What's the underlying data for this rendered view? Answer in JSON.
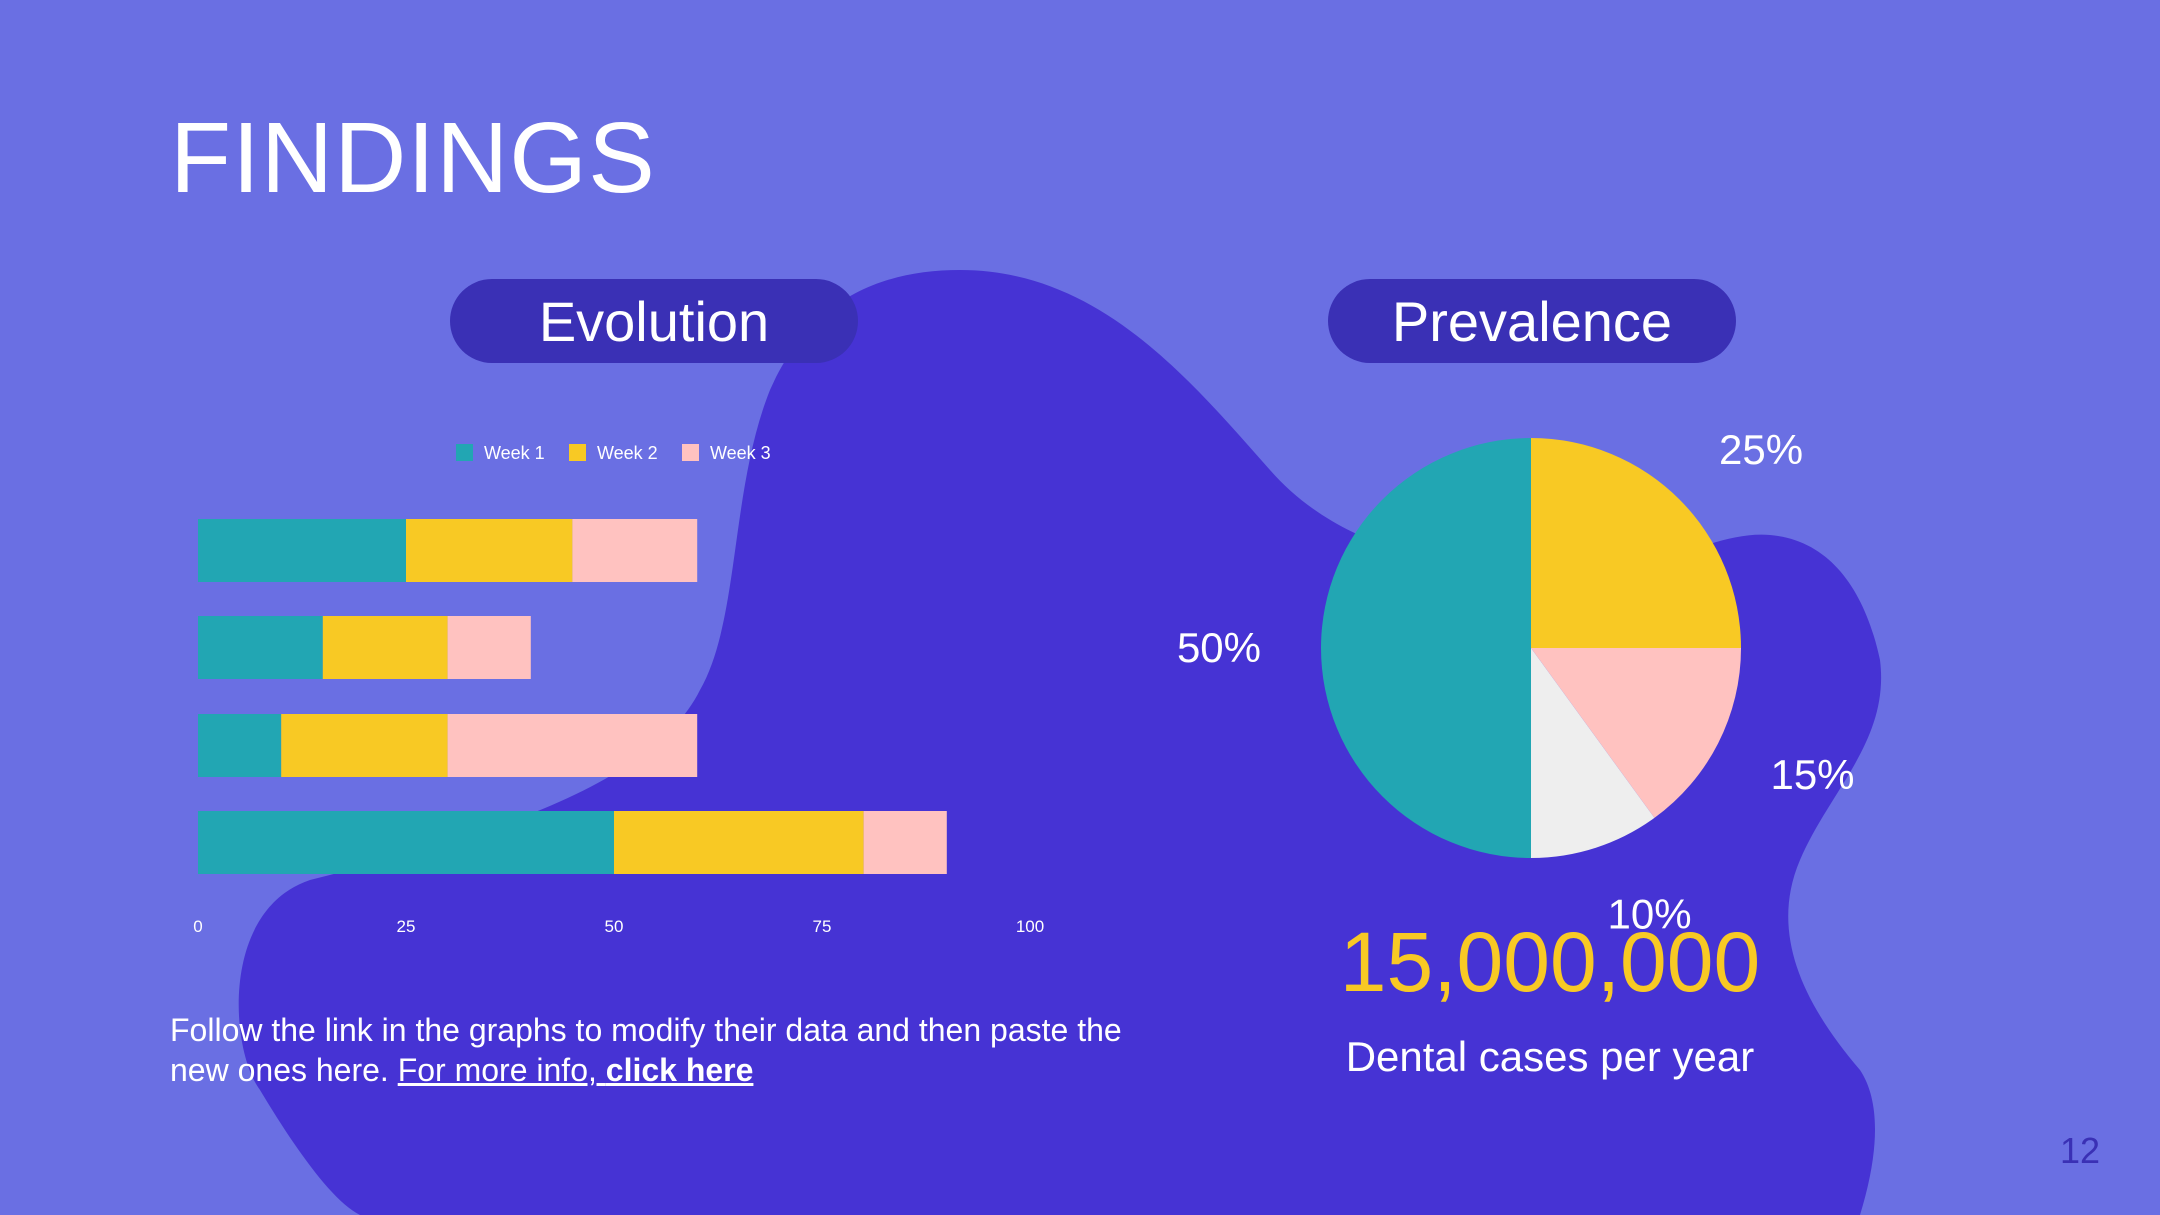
{
  "slide": {
    "title": "FINDINGS",
    "page_number": "12",
    "note": {
      "text": "Follow the link in the graphs to modify their data and then paste the new ones here.",
      "link_prefix": "For more info, ",
      "link_bold": "click here"
    }
  },
  "colors": {
    "background": "#6a6fe3",
    "blob": "#4633d4",
    "pill": "#3a30b5",
    "teal": "#22a6b3",
    "yellow": "#f8c924",
    "pink": "#ffc2c0",
    "light_gray": "#eeeeee",
    "white": "#ffffff"
  },
  "evolution": {
    "heading": "Evolution"
  },
  "prevalence": {
    "heading": "Prevalence",
    "big_number": "15,000,000",
    "caption": "Dental cases per year"
  },
  "chart_data": [
    {
      "type": "bar",
      "orientation": "horizontal",
      "stacked": true,
      "categories": [
        "",
        "",
        "",
        ""
      ],
      "series": [
        {
          "name": "Week 1",
          "color": "#22a6b3",
          "values": [
            25,
            15,
            10,
            50
          ]
        },
        {
          "name": "Week 2",
          "color": "#f8c924",
          "values": [
            20,
            15,
            20,
            30
          ]
        },
        {
          "name": "Week 3",
          "color": "#ffc2c0",
          "values": [
            15,
            10,
            30,
            10
          ]
        }
      ],
      "xlim": [
        0,
        100
      ],
      "xticks": [
        "0",
        "25",
        "50",
        "75",
        "100"
      ],
      "legend": "top",
      "grid": false,
      "title": "",
      "xlabel": "",
      "ylabel": ""
    },
    {
      "type": "pie",
      "slices": [
        {
          "value": 25,
          "label": "25%",
          "color": "#f8c924"
        },
        {
          "value": 15,
          "label": "15%",
          "color": "#ffc2c0"
        },
        {
          "value": 10,
          "label": "10%",
          "color": "#eeeeee"
        },
        {
          "value": 50,
          "label": "50%",
          "color": "#22a6b3"
        }
      ],
      "start": "top",
      "direction": "clockwise"
    }
  ]
}
